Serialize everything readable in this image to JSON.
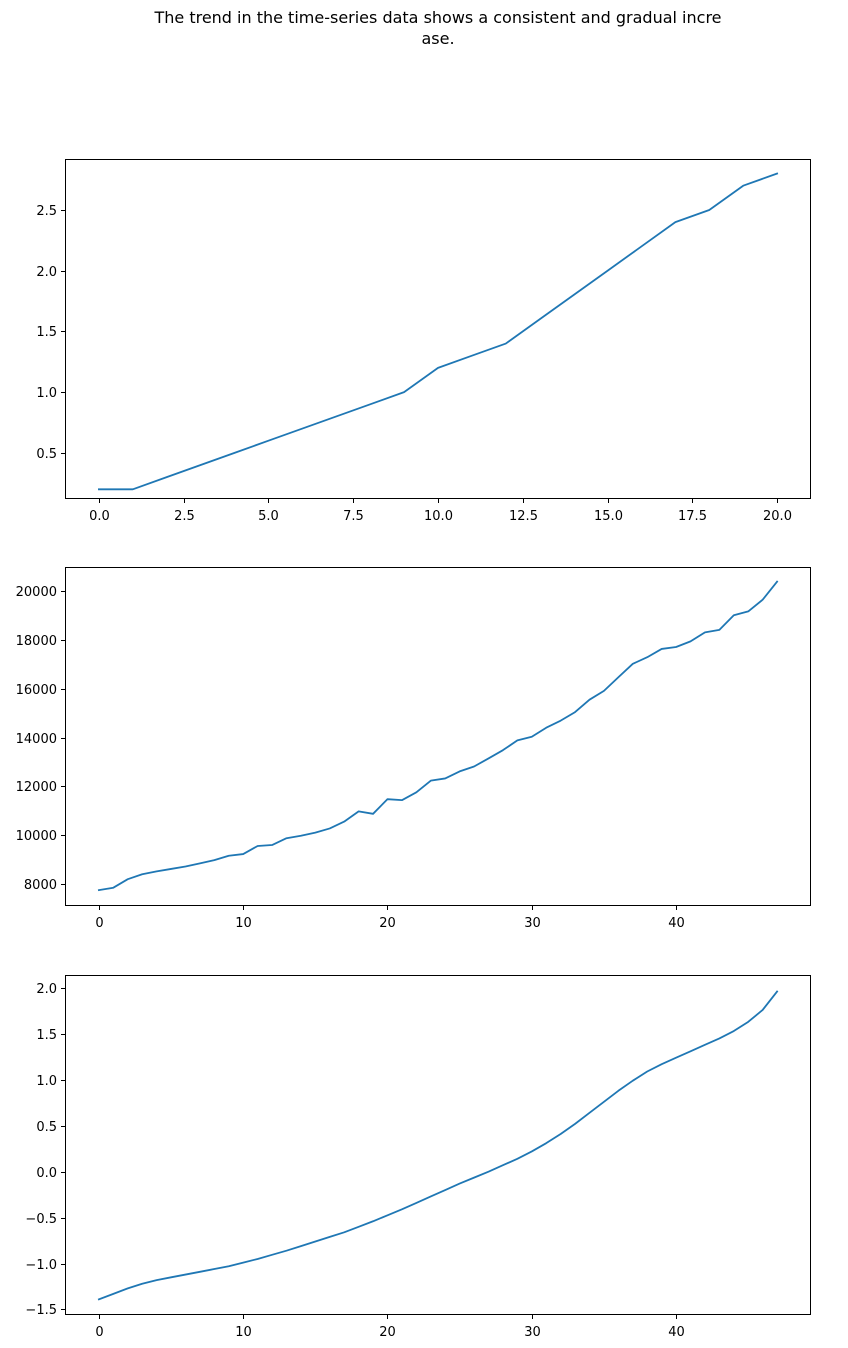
{
  "figure": {
    "title": "The trend in the time-series data shows a consistent and gradual incre\nase."
  },
  "colors": {
    "line": "#1f77b4",
    "frame": "#000000",
    "background": "#ffffff"
  },
  "chart_data": [
    {
      "type": "line",
      "xlim": [
        -1,
        21
      ],
      "ylim": [
        0.12,
        2.92
      ],
      "xticks": [
        0,
        2.5,
        5,
        7.5,
        10,
        12.5,
        15,
        17.5,
        20
      ],
      "xtick_labels": [
        "0.0",
        "2.5",
        "5.0",
        "7.5",
        "10.0",
        "12.5",
        "15.0",
        "17.5",
        "20.0"
      ],
      "yticks": [
        0.5,
        1.0,
        1.5,
        2.0,
        2.5
      ],
      "ytick_labels": [
        "0.5",
        "1.0",
        "1.5",
        "2.0",
        "2.5"
      ],
      "grid": false,
      "x": [
        0,
        1,
        2,
        3,
        4,
        5,
        6,
        7,
        8,
        9,
        10,
        11,
        12,
        13,
        14,
        15,
        16,
        17,
        18,
        19,
        20
      ],
      "series": [
        {
          "values": [
            0.2,
            0.2,
            0.3,
            0.4,
            0.5,
            0.6,
            0.7,
            0.8,
            0.9,
            1.0,
            1.2,
            1.3,
            1.4,
            1.6,
            1.8,
            2.0,
            2.2,
            2.4,
            2.5,
            2.7,
            2.8
          ]
        }
      ]
    },
    {
      "type": "line",
      "xlim": [
        -2.35,
        49.35
      ],
      "ylim": [
        7100,
        21000
      ],
      "xticks": [
        0,
        10,
        20,
        30,
        40
      ],
      "xtick_labels": [
        "0",
        "10",
        "20",
        "30",
        "40"
      ],
      "yticks": [
        8000,
        10000,
        12000,
        14000,
        16000,
        18000,
        20000
      ],
      "ytick_labels": [
        "8000",
        "10000",
        "12000",
        "14000",
        "16000",
        "18000",
        "20000"
      ],
      "grid": false,
      "x": [
        0,
        1,
        2,
        3,
        4,
        5,
        6,
        7,
        8,
        9,
        10,
        11,
        12,
        13,
        14,
        15,
        16,
        17,
        18,
        19,
        20,
        21,
        22,
        23,
        24,
        25,
        26,
        27,
        28,
        29,
        30,
        31,
        32,
        33,
        34,
        35,
        36,
        37,
        38,
        39,
        40,
        41,
        42,
        43,
        44,
        45,
        46,
        47
      ],
      "series": [
        {
          "values": [
            7750,
            7850,
            8200,
            8400,
            8520,
            8620,
            8720,
            8850,
            8980,
            9160,
            9230,
            9560,
            9600,
            9880,
            9980,
            10110,
            10280,
            10560,
            10980,
            10880,
            11480,
            11440,
            11760,
            12240,
            12330,
            12620,
            12820,
            13150,
            13490,
            13890,
            14040,
            14410,
            14700,
            15050,
            15560,
            15920,
            16480,
            17030,
            17300,
            17640,
            17720,
            17950,
            18320,
            18420,
            19020,
            19180,
            19660,
            20400
          ]
        }
      ]
    },
    {
      "type": "line",
      "xlim": [
        -2.35,
        49.35
      ],
      "ylim": [
        -1.56,
        2.14
      ],
      "xticks": [
        0,
        10,
        20,
        30,
        40
      ],
      "xtick_labels": [
        "0",
        "10",
        "20",
        "30",
        "40"
      ],
      "yticks": [
        -1.5,
        -1.0,
        -0.5,
        0.0,
        0.5,
        1.0,
        1.5,
        2.0
      ],
      "ytick_labels": [
        "−1.5",
        "−1.0",
        "−0.5",
        "0.0",
        "0.5",
        "1.0",
        "1.5",
        "2.0"
      ],
      "grid": false,
      "x": [
        0,
        1,
        2,
        3,
        4,
        5,
        6,
        7,
        8,
        9,
        10,
        11,
        12,
        13,
        14,
        15,
        16,
        17,
        18,
        19,
        20,
        21,
        22,
        23,
        24,
        25,
        26,
        27,
        28,
        29,
        30,
        31,
        32,
        33,
        34,
        35,
        36,
        37,
        38,
        39,
        40,
        41,
        42,
        43,
        44,
        45,
        46,
        47
      ],
      "series": [
        {
          "values": [
            -1.39,
            -1.33,
            -1.27,
            -1.22,
            -1.18,
            -1.15,
            -1.12,
            -1.09,
            -1.06,
            -1.03,
            -0.99,
            -0.95,
            -0.905,
            -0.86,
            -0.81,
            -0.76,
            -0.71,
            -0.66,
            -0.6,
            -0.54,
            -0.475,
            -0.41,
            -0.34,
            -0.27,
            -0.2,
            -0.13,
            -0.065,
            0.0,
            0.07,
            0.14,
            0.22,
            0.31,
            0.41,
            0.52,
            0.64,
            0.76,
            0.88,
            0.99,
            1.09,
            1.17,
            1.24,
            1.31,
            1.38,
            1.45,
            1.53,
            1.63,
            1.76,
            1.96
          ]
        }
      ]
    }
  ]
}
